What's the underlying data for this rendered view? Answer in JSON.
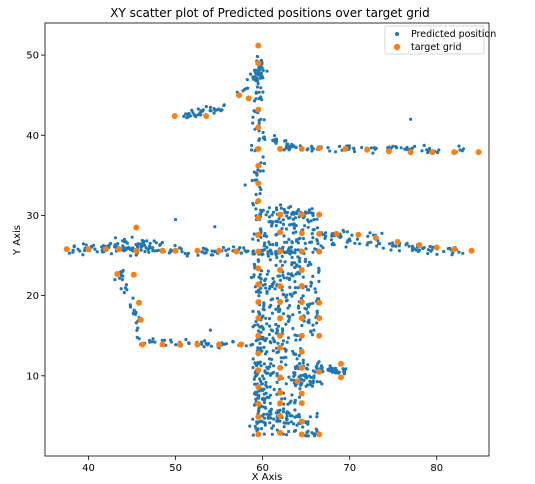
{
  "chart_data": {
    "type": "scatter",
    "title": "XY scatter plot of Predicted positions over target grid",
    "xlabel": "X Axis",
    "ylabel": "Y Axis",
    "xlim": [
      35,
      86
    ],
    "ylim": [
      0,
      54
    ],
    "xticks": [
      40,
      50,
      60,
      70,
      80
    ],
    "yticks": [
      10,
      20,
      30,
      40,
      50
    ],
    "grid": false,
    "legend_position": "top-right",
    "series": [
      {
        "name": "Predicted position",
        "color": "#1f77b4",
        "marker": "small-dot",
        "segments": [
          {
            "from": [
              38.0,
              25.9
            ],
            "to": [
              46.5,
              25.9
            ],
            "count": 55,
            "jitter": [
              0.3,
              0.35
            ]
          },
          {
            "from": [
              43.0,
              26.1
            ],
            "to": [
              47.5,
              26.1
            ],
            "count": 40,
            "jitter": [
              0.6,
              0.55
            ]
          },
          {
            "from": [
              46.5,
              25.6
            ],
            "to": [
              58.0,
              25.5
            ],
            "count": 50,
            "jitter": [
              0.3,
              0.25
            ]
          },
          {
            "from": [
              58.0,
              25.5
            ],
            "to": [
              67.0,
              25.8
            ],
            "count": 30,
            "jitter": [
              0.3,
              0.3
            ]
          },
          {
            "from": [
              67.0,
              26.8
            ],
            "to": [
              83.0,
              25.6
            ],
            "count": 60,
            "jitter": [
              0.3,
              0.3
            ]
          },
          {
            "from": [
              66.5,
              27.7
            ],
            "to": [
              73.0,
              27.5
            ],
            "count": 25,
            "jitter": [
              0.3,
              0.3
            ]
          },
          {
            "from": [
              43.3,
              23.2
            ],
            "to": [
              45.5,
              18.0
            ],
            "count": 20,
            "jitter": [
              0.3,
              0.3
            ]
          },
          {
            "from": [
              45.5,
              18.0
            ],
            "to": [
              46.0,
              14.5
            ],
            "count": 12,
            "jitter": [
              0.25,
              0.25
            ]
          },
          {
            "from": [
              46.0,
              14.2
            ],
            "to": [
              59.0,
              13.9
            ],
            "count": 45,
            "jitter": [
              0.3,
              0.22
            ]
          },
          {
            "from": [
              59.5,
              50.0
            ],
            "to": [
              59.5,
              3.0
            ],
            "count": 160,
            "jitter": [
              0.35,
              0.2
            ]
          },
          {
            "from": [
              59.3,
              44.0
            ],
            "to": [
              59.8,
              49.0
            ],
            "count": 20,
            "jitter": [
              0.3,
              0.3
            ]
          },
          {
            "from": [
              56.5,
              44.5
            ],
            "to": [
              59.5,
              47.5
            ],
            "count": 15,
            "jitter": [
              0.3,
              0.3
            ]
          },
          {
            "from": [
              51.0,
              42.5
            ],
            "to": [
              55.5,
              43.5
            ],
            "count": 35,
            "jitter": [
              0.3,
              0.25
            ]
          },
          {
            "from": [
              59.5,
              40.0
            ],
            "to": [
              64.0,
              38.5
            ],
            "count": 18,
            "jitter": [
              0.3,
              0.3
            ]
          },
          {
            "from": [
              62.0,
              38.5
            ],
            "to": [
              83.0,
              38.2
            ],
            "count": 70,
            "jitter": [
              0.3,
              0.25
            ]
          },
          {
            "from": [
              59.5,
              30.5
            ],
            "to": [
              66.0,
              30.5
            ],
            "count": 35,
            "jitter": [
              0.3,
              0.3
            ]
          },
          {
            "from": [
              66.0,
              11.0
            ],
            "to": [
              69.5,
              10.5
            ],
            "count": 30,
            "jitter": [
              0.35,
              0.3
            ]
          }
        ],
        "clusters": [
          {
            "x": [
              59.5,
              66.5
            ],
            "y": [
              15.0,
              30.5
            ],
            "count": 300
          },
          {
            "x": [
              59.0,
              64.5
            ],
            "y": [
              4.0,
              15.0
            ],
            "count": 160
          },
          {
            "x": [
              58.5,
              66.5
            ],
            "y": [
              2.5,
              5.5
            ],
            "count": 70
          },
          {
            "x": [
              63.5,
              67.0
            ],
            "y": [
              8.5,
              12.0
            ],
            "count": 50
          }
        ],
        "outliers": [
          [
            77.0,
            42.0
          ],
          [
            58.0,
            33.8
          ],
          [
            54.0,
            15.7
          ],
          [
            50.0,
            29.5
          ],
          [
            54.5,
            28.6
          ],
          [
            60.5,
            48.0
          ],
          [
            55.5,
            26.0
          ],
          [
            45.0,
            27.3
          ],
          [
            53.0,
            14.2
          ]
        ]
      },
      {
        "name": "target grid",
        "color": "#ff7f0e",
        "marker": "dot",
        "points": [
          [
            59.5,
            51.2
          ],
          [
            59.5,
            49.0
          ],
          [
            58.4,
            44.6
          ],
          [
            57.3,
            45.0
          ],
          [
            59.5,
            43.2
          ],
          [
            59.5,
            41.0
          ],
          [
            49.9,
            42.4
          ],
          [
            53.5,
            42.4
          ],
          [
            59.5,
            38.3
          ],
          [
            59.5,
            36.2
          ],
          [
            59.5,
            34.0
          ],
          [
            59.5,
            31.8
          ],
          [
            59.5,
            29.7
          ],
          [
            59.5,
            27.6
          ],
          [
            59.5,
            25.5
          ],
          [
            59.5,
            23.4
          ],
          [
            59.5,
            21.4
          ],
          [
            59.5,
            19.2
          ],
          [
            59.5,
            17.2
          ],
          [
            59.5,
            15.0
          ],
          [
            59.5,
            12.8
          ],
          [
            59.5,
            10.7
          ],
          [
            59.5,
            8.6
          ],
          [
            59.5,
            6.5
          ],
          [
            59.5,
            4.9
          ],
          [
            59.5,
            2.7
          ],
          [
            62.0,
            38.3
          ],
          [
            64.5,
            38.3
          ],
          [
            66.5,
            38.4
          ],
          [
            69.5,
            38.3
          ],
          [
            72.0,
            38.2
          ],
          [
            74.5,
            38.0
          ],
          [
            77.0,
            37.9
          ],
          [
            79.5,
            37.9
          ],
          [
            82.0,
            37.9
          ],
          [
            84.8,
            37.9
          ],
          [
            62.0,
            30.1
          ],
          [
            64.5,
            30.1
          ],
          [
            66.5,
            30.1
          ],
          [
            62.0,
            27.9
          ],
          [
            64.5,
            27.8
          ],
          [
            66.5,
            27.7
          ],
          [
            68.5,
            27.7
          ],
          [
            71.0,
            27.6
          ],
          [
            73.0,
            27.2
          ],
          [
            75.5,
            26.7
          ],
          [
            78.0,
            26.3
          ],
          [
            80.0,
            26.0
          ],
          [
            82.0,
            25.8
          ],
          [
            84.0,
            25.6
          ],
          [
            62.0,
            25.5
          ],
          [
            64.5,
            25.5
          ],
          [
            66.5,
            25.5
          ],
          [
            37.5,
            25.8
          ],
          [
            40.0,
            25.8
          ],
          [
            42.0,
            25.8
          ],
          [
            43.5,
            25.8
          ],
          [
            45.5,
            25.6
          ],
          [
            48.5,
            25.6
          ],
          [
            50.0,
            25.6
          ],
          [
            52.5,
            25.6
          ],
          [
            55.0,
            25.6
          ],
          [
            57.0,
            25.5
          ],
          [
            45.5,
            28.5
          ],
          [
            43.3,
            22.7
          ],
          [
            45.2,
            22.6
          ],
          [
            45.8,
            19.1
          ],
          [
            46.0,
            17.0
          ],
          [
            46.2,
            13.9
          ],
          [
            48.5,
            13.9
          ],
          [
            50.5,
            13.9
          ],
          [
            52.5,
            13.9
          ],
          [
            55.0,
            13.9
          ],
          [
            57.5,
            13.9
          ],
          [
            62.0,
            23.2
          ],
          [
            64.5,
            23.2
          ],
          [
            62.0,
            21.2
          ],
          [
            64.5,
            21.2
          ],
          [
            62.0,
            19.2
          ],
          [
            64.5,
            19.2
          ],
          [
            66.5,
            19.1
          ],
          [
            62.0,
            17.2
          ],
          [
            64.5,
            17.2
          ],
          [
            66.5,
            17.2
          ],
          [
            62.0,
            15.0
          ],
          [
            64.5,
            15.0
          ],
          [
            66.5,
            15.0
          ],
          [
            62.0,
            13.5
          ],
          [
            64.5,
            13.0
          ],
          [
            62.0,
            11.0
          ],
          [
            64.5,
            11.0
          ],
          [
            66.5,
            10.5
          ],
          [
            69.0,
            11.5
          ],
          [
            69.0,
            9.8
          ],
          [
            62.0,
            9.8
          ],
          [
            64.0,
            9.3
          ],
          [
            62.0,
            7.9
          ],
          [
            64.5,
            7.8
          ],
          [
            62.0,
            6.6
          ],
          [
            64.5,
            6.6
          ],
          [
            62.0,
            5.0
          ],
          [
            64.5,
            4.3
          ],
          [
            62.0,
            2.9
          ],
          [
            64.5,
            2.7
          ],
          [
            66.5,
            2.7
          ]
        ]
      }
    ]
  }
}
